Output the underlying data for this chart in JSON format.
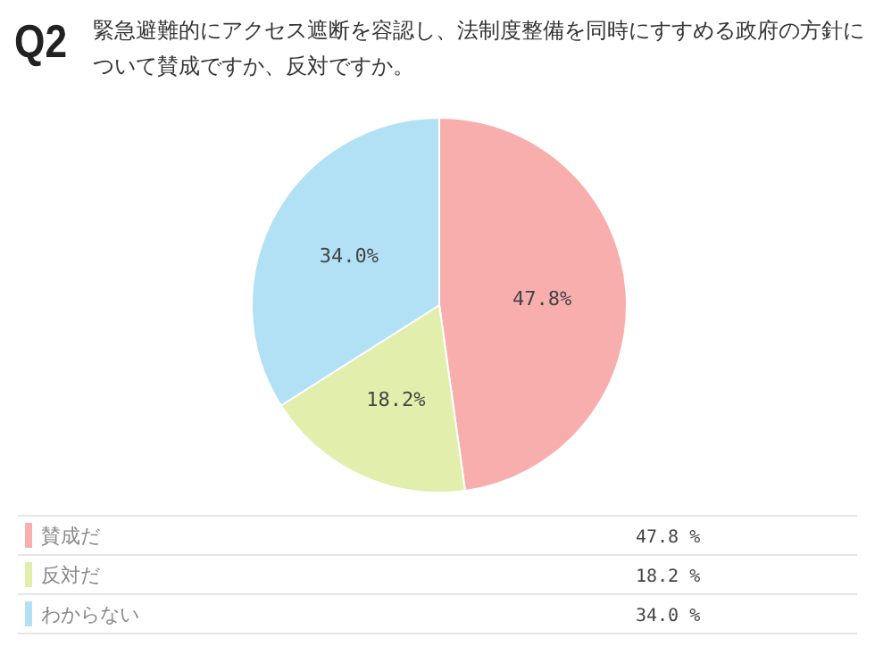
{
  "chart_data": {
    "type": "pie",
    "title": "Q2",
    "subtitle": "緊急避難的にアクセス遮断を容認し、法制度整備を同時にすすめる政府の方針について賛成ですか、反対ですか。",
    "categories": [
      "賛成だ",
      "反対だ",
      "わからない"
    ],
    "values": [
      47.8,
      18.2,
      34.0
    ],
    "colors": [
      "#f9aeae",
      "#e2eeab",
      "#b2e1f6"
    ],
    "value_labels": [
      "47.8%",
      "18.2%",
      "34.0%"
    ],
    "data_labels": true,
    "annotations": [
      "47.8 %",
      "18.2 %",
      "34.0 %"
    ],
    "legend": "bottom"
  }
}
